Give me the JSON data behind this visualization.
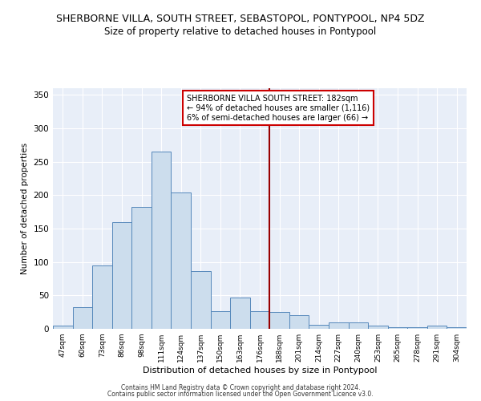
{
  "title": "SHERBORNE VILLA, SOUTH STREET, SEBASTOPOL, PONTYPOOL, NP4 5DZ",
  "subtitle": "Size of property relative to detached houses in Pontypool",
  "xlabel": "Distribution of detached houses by size in Pontypool",
  "ylabel": "Number of detached properties",
  "categories": [
    "47sqm",
    "60sqm",
    "73sqm",
    "86sqm",
    "98sqm",
    "111sqm",
    "124sqm",
    "137sqm",
    "150sqm",
    "163sqm",
    "176sqm",
    "188sqm",
    "201sqm",
    "214sqm",
    "227sqm",
    "240sqm",
    "253sqm",
    "265sqm",
    "278sqm",
    "291sqm",
    "304sqm"
  ],
  "values": [
    5,
    32,
    95,
    160,
    182,
    265,
    204,
    87,
    26,
    47,
    26,
    25,
    20,
    6,
    10,
    10,
    5,
    2,
    3,
    5,
    3
  ],
  "bar_color": "#ccdded",
  "bar_edge_color": "#5588bb",
  "vline_color": "#990000",
  "annotation_text": "SHERBORNE VILLA SOUTH STREET: 182sqm\n← 94% of detached houses are smaller (1,116)\n6% of semi-detached houses are larger (66) →",
  "annotation_box_color": "white",
  "annotation_box_edge": "#cc0000",
  "ylim": [
    0,
    360
  ],
  "yticks": [
    0,
    50,
    100,
    150,
    200,
    250,
    300,
    350
  ],
  "footer1": "Contains HM Land Registry data © Crown copyright and database right 2024.",
  "footer2": "Contains public sector information licensed under the Open Government Licence v3.0.",
  "background_color": "#e8eef8",
  "title_fontsize": 9,
  "subtitle_fontsize": 8.5
}
